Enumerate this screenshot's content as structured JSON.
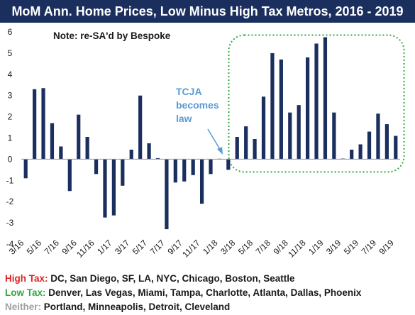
{
  "title": "MoM Ann. Home Prices, Low Minus High Tax Metros, 2016 - 2019",
  "note": "Note: re-SA'd by Bespoke",
  "annotation": [
    "TCJA",
    "becomes",
    "law"
  ],
  "legend": [
    {
      "key": "High Tax:",
      "text": " DC, San Diego, SF, LA, NYC, Chicago, Boston, Seattle",
      "color": "#e02020"
    },
    {
      "key": "Low Tax:",
      "text": " Denver, Las Vegas, Miami, Tampa, Charlotte, Atlanta, Dallas, Phoenix",
      "color": "#2eaa3a"
    },
    {
      "key": "Neither:",
      "text": " Portland, Minneapolis, Detroit, Cleveland",
      "color": "#a0a0a0"
    }
  ],
  "colors": {
    "bar": "#1b2f5e",
    "highlight_box": "#2eaa3a",
    "annotation": "#5b9bd5",
    "title_bg": "#1b2f5e"
  },
  "chart_data": {
    "type": "bar",
    "title": "MoM Ann. Home Prices, Low Minus High Tax Metros, 2016 - 2019",
    "ylim": [
      -4,
      6
    ],
    "yticks": [
      -4,
      -3,
      -2,
      -1,
      0,
      1,
      2,
      3,
      4,
      5,
      6
    ],
    "tick_labels": [
      "3/16",
      "5/16",
      "7/16",
      "9/16",
      "11/16",
      "1/17",
      "3/17",
      "5/17",
      "7/17",
      "9/17",
      "11/17",
      "1/18",
      "3/18",
      "5/18",
      "7/18",
      "9/18",
      "11/18",
      "1/19",
      "3/19",
      "5/19",
      "7/19",
      "9/19"
    ],
    "categories": [
      "3/16",
      "4/16",
      "5/16",
      "6/16",
      "7/16",
      "8/16",
      "9/16",
      "10/16",
      "11/16",
      "12/16",
      "1/17",
      "2/17",
      "3/17",
      "4/17",
      "5/17",
      "6/17",
      "7/17",
      "8/17",
      "9/17",
      "10/17",
      "11/17",
      "12/17",
      "1/18",
      "2/18",
      "3/18",
      "4/18",
      "5/18",
      "6/18",
      "7/18",
      "8/18",
      "9/18",
      "10/18",
      "11/18",
      "12/18",
      "1/19",
      "2/19",
      "3/19",
      "4/19",
      "5/19",
      "6/19",
      "7/19",
      "8/19",
      "9/19"
    ],
    "values": [
      -0.9,
      3.3,
      3.35,
      1.7,
      0.6,
      -1.5,
      2.1,
      1.05,
      -0.7,
      -2.75,
      -2.65,
      -1.25,
      0.45,
      3.0,
      0.75,
      0.05,
      -3.3,
      -1.1,
      -1.05,
      -0.75,
      -2.1,
      -0.7,
      0.02,
      -0.5,
      1.05,
      1.55,
      0.95,
      2.95,
      5.0,
      4.7,
      2.2,
      2.55,
      4.8,
      5.45,
      5.75,
      2.2,
      0.03,
      0.45,
      0.7,
      1.3,
      2.15,
      1.65,
      1.1
    ],
    "highlight_range": [
      "3/18",
      "9/19"
    ],
    "grid": false
  }
}
